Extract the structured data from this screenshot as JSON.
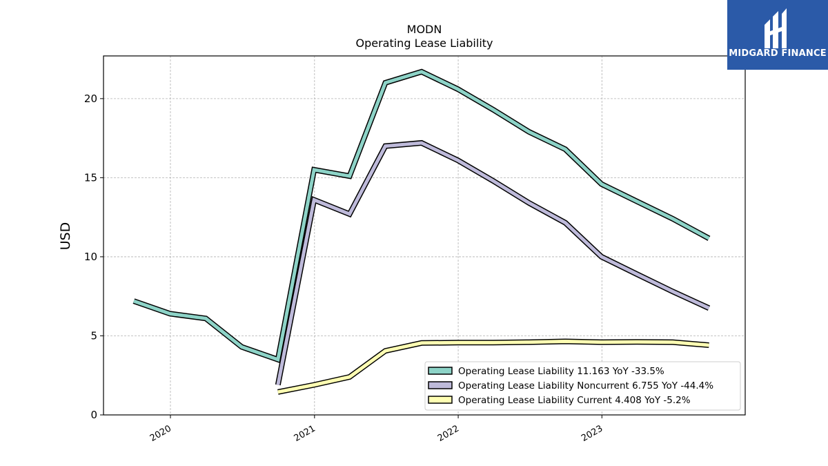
{
  "logo": {
    "text": "MIDGARD FINANCE",
    "bg_color": "#2b5aa8"
  },
  "chart_data": {
    "type": "line",
    "title": "MODN",
    "subtitle": "Operating Lease Liability",
    "ylabel": "USD",
    "xlabel": "",
    "ylim": [
      0,
      22.7
    ],
    "xlim": [
      "2019-07-15",
      "2023-12-31"
    ],
    "yticks": [
      0,
      5,
      10,
      15,
      20
    ],
    "xticks": [
      "2020-01-01",
      "2021-01-01",
      "2022-01-01",
      "2023-01-01"
    ],
    "xtick_labels": [
      "2020",
      "2021",
      "2022",
      "2023"
    ],
    "grid": true,
    "legend_position": "lower-right",
    "series": [
      {
        "name": "Operating Lease Liability",
        "legend_label": "Operating Lease Liability  11.163 YoY -33.5%",
        "color": "#8dd3c7",
        "x": [
          "2019-09-30",
          "2019-12-31",
          "2020-03-31",
          "2020-06-30",
          "2020-09-30",
          "2020-12-31",
          "2021-03-31",
          "2021-06-30",
          "2021-09-30",
          "2021-12-31",
          "2022-03-31",
          "2022-06-30",
          "2022-09-30",
          "2022-12-31",
          "2023-03-31",
          "2023-06-30",
          "2023-09-30"
        ],
        "y": [
          7.2,
          6.4,
          6.1,
          4.3,
          3.5,
          15.5,
          15.1,
          21.0,
          21.7,
          20.6,
          19.3,
          17.9,
          16.8,
          14.6,
          13.5,
          12.4,
          11.163
        ]
      },
      {
        "name": "Operating Lease Liability Noncurrent",
        "legend_label": "Operating Lease Liability Noncurrent  6.755 YoY -44.4%",
        "color": "#bebada",
        "x": [
          "2020-09-30",
          "2020-12-31",
          "2021-03-31",
          "2021-06-30",
          "2021-09-30",
          "2021-12-31",
          "2022-03-31",
          "2022-06-30",
          "2022-09-30",
          "2022-12-31",
          "2023-03-31",
          "2023-06-30",
          "2023-09-30"
        ],
        "y": [
          1.9,
          13.6,
          12.7,
          17.0,
          17.2,
          16.1,
          14.8,
          13.4,
          12.15,
          10.0,
          8.9,
          7.8,
          6.755
        ]
      },
      {
        "name": "Operating Lease Liability Current",
        "legend_label": "Operating Lease Liability Current  4.408 YoY -5.2%",
        "color": "#ffffb3",
        "x": [
          "2020-09-30",
          "2020-12-31",
          "2021-03-31",
          "2021-06-30",
          "2021-09-30",
          "2021-12-31",
          "2022-03-31",
          "2022-06-30",
          "2022-09-30",
          "2022-12-31",
          "2023-03-31",
          "2023-06-30",
          "2023-09-30"
        ],
        "y": [
          1.45,
          1.9,
          2.4,
          4.05,
          4.55,
          4.57,
          4.57,
          4.6,
          4.65,
          4.6,
          4.62,
          4.6,
          4.408
        ]
      }
    ]
  }
}
